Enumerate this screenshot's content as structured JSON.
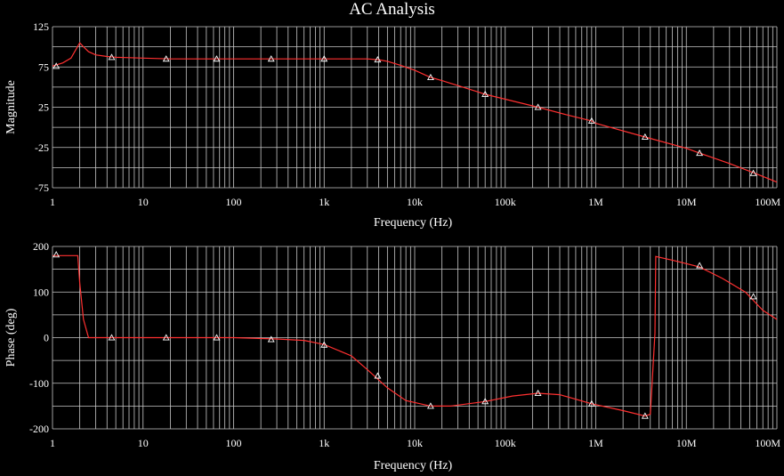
{
  "window": {
    "title": "AC Analysis",
    "background": "#000000"
  },
  "colors": {
    "grid": "#c8c8c8",
    "trace": "#ff3030",
    "marker": "#ffffff",
    "text": "#ffffff"
  },
  "chart_data": [
    {
      "type": "line",
      "xscale": "log",
      "xlabel": "Frequency (Hz)",
      "ylabel": "Magnitude",
      "xlim": [
        1,
        100000000
      ],
      "ylim": [
        -75,
        125
      ],
      "xticks": [
        {
          "value": 1,
          "label": "1"
        },
        {
          "value": 10,
          "label": "10"
        },
        {
          "value": 100,
          "label": "100"
        },
        {
          "value": 1000,
          "label": "1k"
        },
        {
          "value": 10000,
          "label": "10k"
        },
        {
          "value": 100000,
          "label": "100k"
        },
        {
          "value": 1000000,
          "label": "1M"
        },
        {
          "value": 10000000,
          "label": "10M"
        },
        {
          "value": 100000000,
          "label": "100M"
        }
      ],
      "yticks": [
        {
          "value": 125,
          "label": "125"
        },
        {
          "value": 75,
          "label": "75"
        },
        {
          "value": 25,
          "label": "25"
        },
        {
          "value": -25,
          "label": "-25"
        },
        {
          "value": -75,
          "label": "-75"
        }
      ],
      "ygrid": [
        125,
        100,
        75,
        50,
        25,
        0,
        -25,
        -50,
        -75
      ],
      "grid": true,
      "series": [
        {
          "x": [
            1,
            1.3,
            1.6,
            1.8,
            2.0,
            2.2,
            2.5,
            3,
            4,
            5,
            7,
            10,
            20,
            50,
            100,
            300,
            1000,
            3000,
            4000,
            5000,
            7000,
            10000,
            15000,
            20000,
            50000,
            60000,
            100000,
            230000,
            500000,
            900000,
            1000000,
            3500000,
            10000000,
            14000000,
            30000000,
            60000000,
            100000000
          ],
          "y": [
            76,
            80,
            86,
            96,
            105,
            100,
            94,
            90,
            88,
            87,
            86.5,
            86,
            85,
            85,
            85,
            85,
            85,
            85,
            84,
            82,
            77,
            71,
            62,
            58,
            44,
            41,
            35,
            25,
            15,
            8,
            5,
            -12,
            -26,
            -32,
            -45,
            -58,
            -68
          ]
        }
      ],
      "markers": [
        {
          "x": 1.1,
          "y": 76
        },
        {
          "x": 4.5,
          "y": 87
        },
        {
          "x": 18,
          "y": 85
        },
        {
          "x": 65,
          "y": 85
        },
        {
          "x": 260,
          "y": 85
        },
        {
          "x": 1000,
          "y": 85
        },
        {
          "x": 3900,
          "y": 84
        },
        {
          "x": 15000,
          "y": 62
        },
        {
          "x": 60000,
          "y": 41
        },
        {
          "x": 230000,
          "y": 25
        },
        {
          "x": 900000,
          "y": 8
        },
        {
          "x": 3500000,
          "y": -12
        },
        {
          "x": 14000000,
          "y": -32
        },
        {
          "x": 55000000,
          "y": -57
        }
      ]
    },
    {
      "type": "line",
      "xscale": "log",
      "xlabel": "Frequency (Hz)",
      "ylabel": "Phase (deg)",
      "xlim": [
        1,
        100000000
      ],
      "ylim": [
        -200,
        200
      ],
      "xticks": [
        {
          "value": 1,
          "label": "1"
        },
        {
          "value": 10,
          "label": "10"
        },
        {
          "value": 100,
          "label": "100"
        },
        {
          "value": 1000,
          "label": "1k"
        },
        {
          "value": 10000,
          "label": "10k"
        },
        {
          "value": 100000,
          "label": "100k"
        },
        {
          "value": 1000000,
          "label": "1M"
        },
        {
          "value": 10000000,
          "label": "10M"
        },
        {
          "value": 100000000,
          "label": "100M"
        }
      ],
      "yticks": [
        {
          "value": 200,
          "label": "200"
        },
        {
          "value": 100,
          "label": "100"
        },
        {
          "value": 0,
          "label": "0"
        },
        {
          "value": -100,
          "label": "-100"
        },
        {
          "value": -200,
          "label": "-200"
        }
      ],
      "ygrid": [
        200,
        150,
        100,
        50,
        0,
        -50,
        -100,
        -150,
        -200
      ],
      "grid": true,
      "series": [
        {
          "x": [
            1,
            1.9,
            2.0,
            2.2,
            2.5,
            10,
            100,
            300,
            600,
            1000,
            2000,
            3000,
            5000,
            8000,
            15000,
            25000,
            60000,
            120000,
            230000,
            400000,
            900000,
            2000000,
            3500000,
            4000000,
            4500000,
            4600000,
            7000000,
            14000000,
            25000000,
            45000000,
            70000000,
            100000000
          ],
          "y": [
            180,
            180,
            120,
            40,
            0,
            0,
            0,
            -3,
            -6,
            -15,
            -40,
            -70,
            -110,
            -138,
            -150,
            -150,
            -140,
            -128,
            -122,
            -125,
            -145,
            -160,
            -172,
            -168,
            10,
            178,
            170,
            155,
            130,
            100,
            60,
            40
          ]
        }
      ],
      "markers": [
        {
          "x": 1.1,
          "y": 182
        },
        {
          "x": 4.5,
          "y": 0
        },
        {
          "x": 18,
          "y": 0
        },
        {
          "x": 65,
          "y": 0
        },
        {
          "x": 260,
          "y": -4
        },
        {
          "x": 1000,
          "y": -16
        },
        {
          "x": 3900,
          "y": -84
        },
        {
          "x": 15000,
          "y": -150
        },
        {
          "x": 60000,
          "y": -140
        },
        {
          "x": 230000,
          "y": -122
        },
        {
          "x": 900000,
          "y": -145
        },
        {
          "x": 3500000,
          "y": -172
        },
        {
          "x": 14000000,
          "y": 158
        },
        {
          "x": 55000000,
          "y": 90
        }
      ]
    }
  ]
}
